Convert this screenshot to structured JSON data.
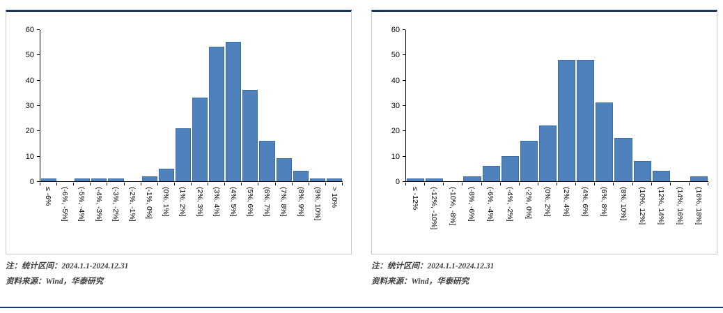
{
  "page": {
    "accent_color": "#17375e",
    "bar_color": "#4f81bd",
    "bar_border_color": "#3c6da8"
  },
  "notes": {
    "line1": "注：统计区间：2024.1.1-2024.12.31",
    "line2": "资料来源：Wind，华泰研究"
  },
  "chart_data": [
    {
      "type": "bar",
      "title": "",
      "xlabel": "",
      "ylabel": "",
      "ylim": [
        0,
        60
      ],
      "ytick_step": 10,
      "grid": false,
      "legend": false,
      "bar_color": "#4f81bd",
      "bar_border_color": "#3c6da8",
      "categories": [
        "≤ -6%",
        "(-6%, -5%]",
        "(-5%, -4%]",
        "(-4%, -3%]",
        "(-3%, -2%]",
        "(-2%, -1%]",
        "(-1%, 0%]",
        "(0%, 1%]",
        "(1%, 2%]",
        "(2%, 3%]",
        "(3%, 4%]",
        "(4%, 5%]",
        "(5%, 6%]",
        "(6%, 7%]",
        "(7%, 8%]",
        "(8%, 9%]",
        "(9%, 10%]",
        "> 10%"
      ],
      "values": [
        1,
        0,
        1,
        1,
        1,
        0,
        2,
        5,
        21,
        33,
        53,
        55,
        36,
        16,
        9,
        4,
        1,
        1
      ]
    },
    {
      "type": "bar",
      "title": "",
      "xlabel": "",
      "ylabel": "",
      "ylim": [
        0,
        60
      ],
      "ytick_step": 10,
      "grid": false,
      "legend": false,
      "bar_color": "#4f81bd",
      "bar_border_color": "#3c6da8",
      "categories": [
        "≤ -12%",
        "(-12%, -10%]",
        "(-10%, -8%]",
        "(-8%, -6%]",
        "(-6%, -4%]",
        "(-4%, -2%]",
        "(-2%, 0%]",
        "(0%, 2%]",
        "(2%, 4%]",
        "(4%, 6%]",
        "(6%, 8%]",
        "(8%, 10%]",
        "(10%, 12%]",
        "(12%, 14%]",
        "(14%, 16%]",
        "(16%, 18%]"
      ],
      "values": [
        1,
        1,
        0,
        2,
        6,
        10,
        16,
        22,
        48,
        48,
        31,
        17,
        8,
        4,
        0,
        2
      ]
    }
  ]
}
